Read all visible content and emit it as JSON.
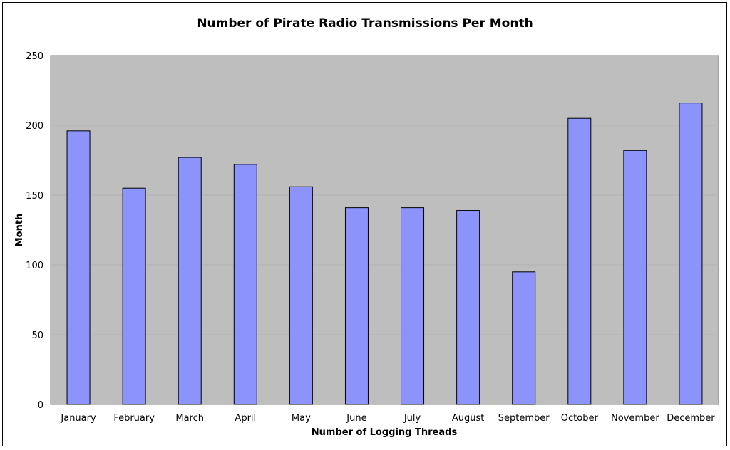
{
  "chart_data": {
    "type": "bar",
    "title": "Number of Pirate Radio Transmissions Per Month",
    "xlabel": "Number of Logging Threads",
    "ylabel": "Month",
    "categories": [
      "January",
      "February",
      "March",
      "April",
      "May",
      "June",
      "July",
      "August",
      "September",
      "October",
      "November",
      "December"
    ],
    "values": [
      196,
      155,
      177,
      172,
      156,
      141,
      141,
      139,
      95,
      205,
      182,
      216
    ],
    "ylim": [
      0,
      250
    ],
    "yticks": [
      "0",
      "50",
      "100",
      "150",
      "200",
      "250"
    ],
    "grid": true,
    "legend": "none",
    "colors": {
      "bar_fill": "#8c94fb",
      "bar_stroke": "#000000",
      "plot_background": "#bebebe",
      "gridline": "#b3b3b3"
    }
  }
}
